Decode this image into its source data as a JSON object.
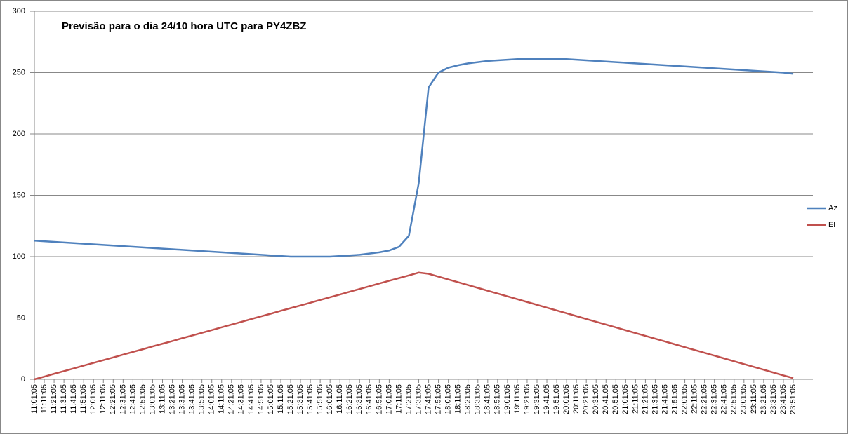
{
  "chart_data": {
    "type": "line",
    "title": "Previsão para o dia 24/10  hora UTC para PY4ZBZ",
    "categories": [
      "11:01:05",
      "11:11:05",
      "11:21:05",
      "11:31:05",
      "11:41:05",
      "11:51:05",
      "12:01:05",
      "12:11:05",
      "12:21:05",
      "12:31:05",
      "12:41:05",
      "12:51:05",
      "13:01:05",
      "13:11:05",
      "13:21:05",
      "13:31:05",
      "13:41:05",
      "13:51:05",
      "14:01:05",
      "14:11:05",
      "14:21:05",
      "14:31:05",
      "14:41:05",
      "14:51:05",
      "15:01:05",
      "15:11:05",
      "15:21:05",
      "15:31:05",
      "15:41:05",
      "15:51:05",
      "16:01:05",
      "16:11:05",
      "16:21:05",
      "16:31:05",
      "16:41:05",
      "16:51:05",
      "17:01:05",
      "17:11:05",
      "17:21:05",
      "17:31:05",
      "17:41:05",
      "17:51:05",
      "18:01:05",
      "18:11:05",
      "18:21:05",
      "18:31:05",
      "18:41:05",
      "18:51:05",
      "19:01:05",
      "19:11:05",
      "19:21:05",
      "19:31:05",
      "19:41:05",
      "19:51:05",
      "20:01:05",
      "20:11:05",
      "20:21:05",
      "20:31:05",
      "20:41:05",
      "20:51:05",
      "21:01:05",
      "21:11:05",
      "21:21:05",
      "21:31:05",
      "21:41:05",
      "21:51:05",
      "22:01:05",
      "22:11:05",
      "22:21:05",
      "22:31:05",
      "22:41:05",
      "22:51:05",
      "23:01:05",
      "23:11:05",
      "23:21:05",
      "23:31:05",
      "23:41:05",
      "23:51:05"
    ],
    "series": [
      {
        "name": "Az",
        "color": "#4f81bd",
        "values": [
          113,
          112.5,
          112,
          111.5,
          111,
          110.5,
          110,
          109.5,
          109,
          108.5,
          108,
          107.5,
          107,
          106.5,
          106,
          105.5,
          105,
          104.5,
          104,
          103.5,
          103,
          102.5,
          102,
          101.5,
          101,
          100.5,
          100,
          100,
          100,
          100,
          100,
          100.5,
          101,
          101.5,
          102.5,
          103.5,
          105,
          108,
          117,
          160,
          238,
          250,
          254,
          256,
          257.5,
          258.5,
          259.5,
          260,
          260.5,
          261,
          261,
          261,
          261,
          261,
          261,
          260.5,
          260,
          259.5,
          259,
          258.5,
          258,
          257.5,
          257,
          256.5,
          256,
          255.5,
          255,
          254.5,
          254,
          253.5,
          253,
          252.5,
          252,
          251.5,
          251,
          250.5,
          250,
          249
        ]
      },
      {
        "name": "El",
        "color": "#c0504d",
        "values": [
          0,
          2.2,
          4.5,
          6.7,
          8.9,
          11.2,
          13.4,
          15.6,
          17.8,
          20.1,
          22.3,
          24.5,
          26.8,
          29,
          31.2,
          33.5,
          35.7,
          37.9,
          40.1,
          42.4,
          44.6,
          46.8,
          49.1,
          51.3,
          53.5,
          55.8,
          58,
          60.2,
          62.4,
          64.7,
          66.9,
          69.1,
          71.4,
          73.6,
          75.8,
          78.1,
          80.3,
          82.5,
          84.7,
          87,
          86,
          83.7,
          81.4,
          79.1,
          76.8,
          74.5,
          72.2,
          69.9,
          67.6,
          65.3,
          63,
          60.7,
          58.4,
          56.1,
          53.8,
          51.5,
          49.2,
          46.9,
          44.6,
          42.3,
          40,
          37.7,
          35.4,
          33.1,
          30.8,
          28.5,
          26.2,
          23.9,
          21.6,
          19.3,
          17,
          14.7,
          12.4,
          10.1,
          7.8,
          5.5,
          3.2,
          1
        ]
      }
    ],
    "ylim": [
      0,
      300
    ],
    "yticks": [
      0,
      50,
      100,
      150,
      200,
      250,
      300
    ],
    "grid": true,
    "legend": "right"
  }
}
